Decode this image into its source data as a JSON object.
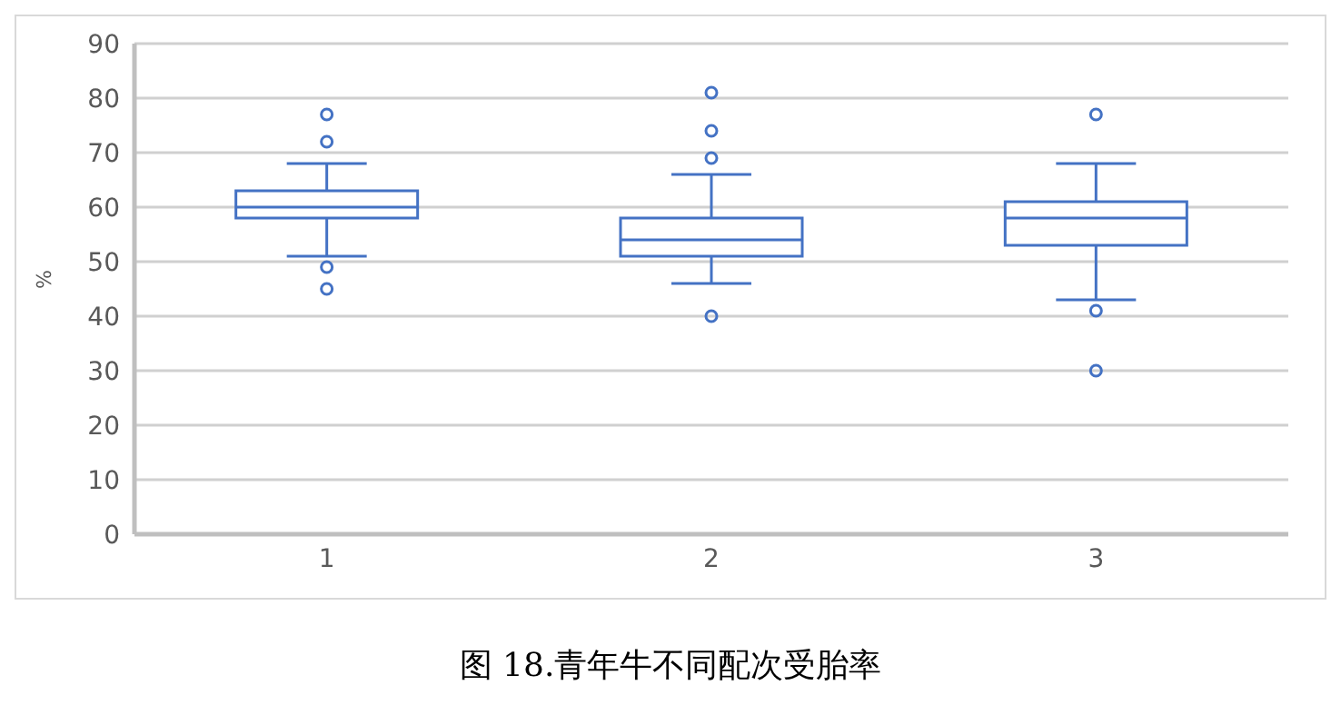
{
  "chart_data": {
    "type": "box",
    "title": "图 18.青年牛不同配次受胎率",
    "ylabel": "%",
    "categories": [
      "1",
      "2",
      "3"
    ],
    "color": "#4472c4",
    "boxes": [
      {
        "low": 51,
        "q1": 58,
        "median": 60,
        "q3": 63,
        "high": 68,
        "outliers": [
          77,
          72,
          49,
          45
        ]
      },
      {
        "low": 46,
        "q1": 51,
        "median": 54,
        "q3": 58,
        "high": 66,
        "outliers": [
          81,
          74,
          69,
          40
        ]
      },
      {
        "low": 43,
        "q1": 53,
        "median": 58,
        "q3": 61,
        "high": 68,
        "outliers": [
          77,
          41,
          30
        ]
      }
    ],
    "ylim": [
      0,
      90
    ],
    "yticks": [
      0,
      10,
      20,
      30,
      40,
      50,
      60,
      70,
      80,
      90
    ],
    "grid": "y",
    "legend": false
  }
}
